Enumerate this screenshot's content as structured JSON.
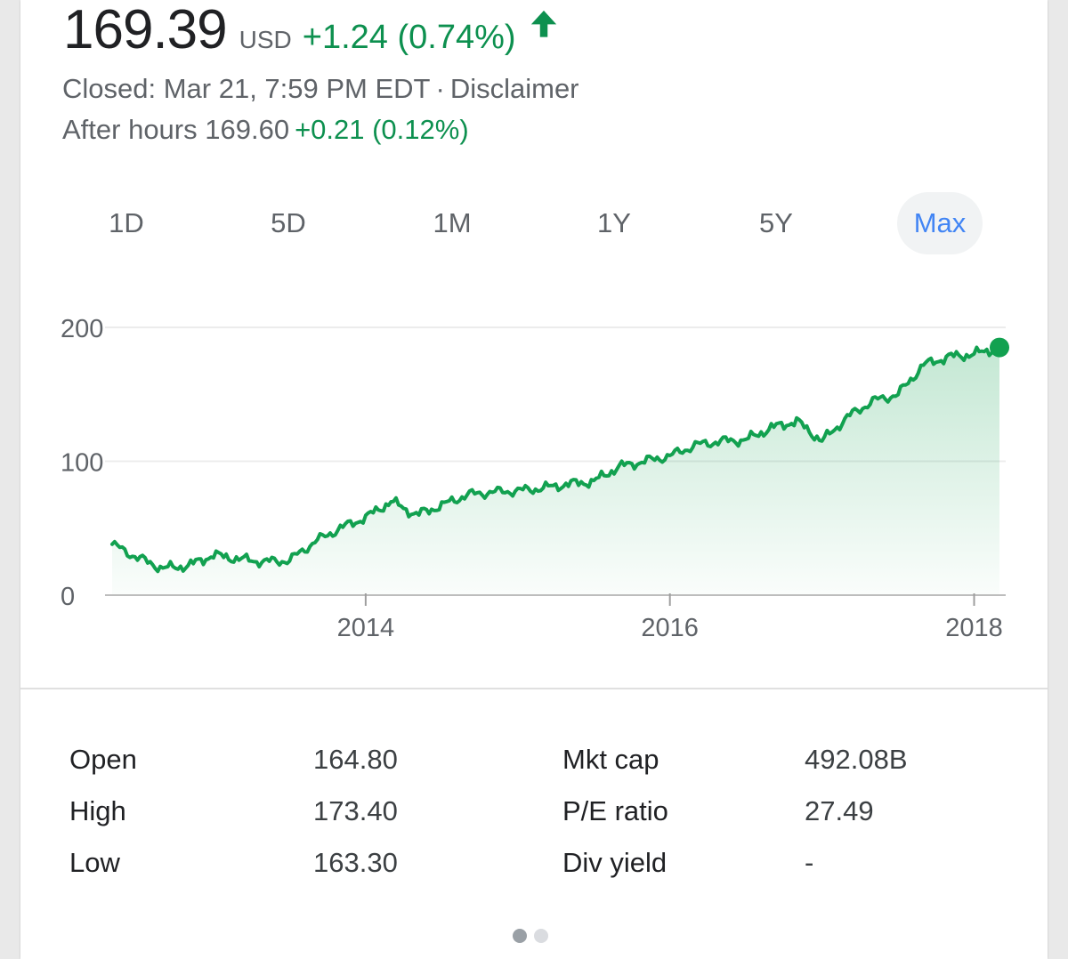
{
  "quote": {
    "price": "169.39",
    "currency": "USD",
    "change": "+1.24 (0.74%)",
    "change_direction_icon": "arrow-up-icon",
    "status": "Closed: Mar 21, 7:59 PM EDT",
    "separator": "·",
    "disclaimer": "Disclaimer",
    "after_hours_label": "After hours 169.60",
    "after_hours_change": "+0.21 (0.12%)"
  },
  "ranges": {
    "tabs": [
      "1D",
      "5D",
      "1M",
      "1Y",
      "5Y",
      "Max"
    ],
    "selected": "Max"
  },
  "colors": {
    "positive": "#0d904f",
    "line": "#12a150",
    "selected_tab": "#4285f4"
  },
  "chart_data": {
    "type": "area",
    "ylim": [
      0,
      200
    ],
    "yticks": [
      "0",
      "100",
      "200"
    ],
    "xticks": [
      "2014",
      "2016",
      "2018"
    ],
    "x": [
      "2012-05",
      "2012-07",
      "2012-09",
      "2012-11",
      "2013-01",
      "2013-03",
      "2013-05",
      "2013-07",
      "2013-09",
      "2013-11",
      "2014-01",
      "2014-03",
      "2014-05",
      "2014-07",
      "2014-09",
      "2014-11",
      "2015-01",
      "2015-03",
      "2015-05",
      "2015-07",
      "2015-09",
      "2015-11",
      "2016-01",
      "2016-03",
      "2016-05",
      "2016-07",
      "2016-09",
      "2016-11",
      "2017-01",
      "2017-03",
      "2017-05",
      "2017-07",
      "2017-09",
      "2017-11",
      "2018-01",
      "2018-03"
    ],
    "y": [
      38,
      28,
      20,
      22,
      30,
      27,
      25,
      26,
      40,
      50,
      58,
      70,
      60,
      67,
      75,
      77,
      78,
      80,
      83,
      85,
      96,
      100,
      104,
      112,
      115,
      116,
      125,
      130,
      115,
      133,
      145,
      150,
      172,
      178,
      180,
      185
    ]
  },
  "stats": {
    "rows": [
      {
        "label": "Open",
        "value": "164.80",
        "label2": "Mkt cap",
        "value2": "492.08B"
      },
      {
        "label": "High",
        "value": "173.40",
        "label2": "P/E ratio",
        "value2": "27.49"
      },
      {
        "label": "Low",
        "value": "163.30",
        "label2": "Div yield",
        "value2": "-"
      }
    ]
  },
  "pager": {
    "count": 2,
    "active": 0
  }
}
